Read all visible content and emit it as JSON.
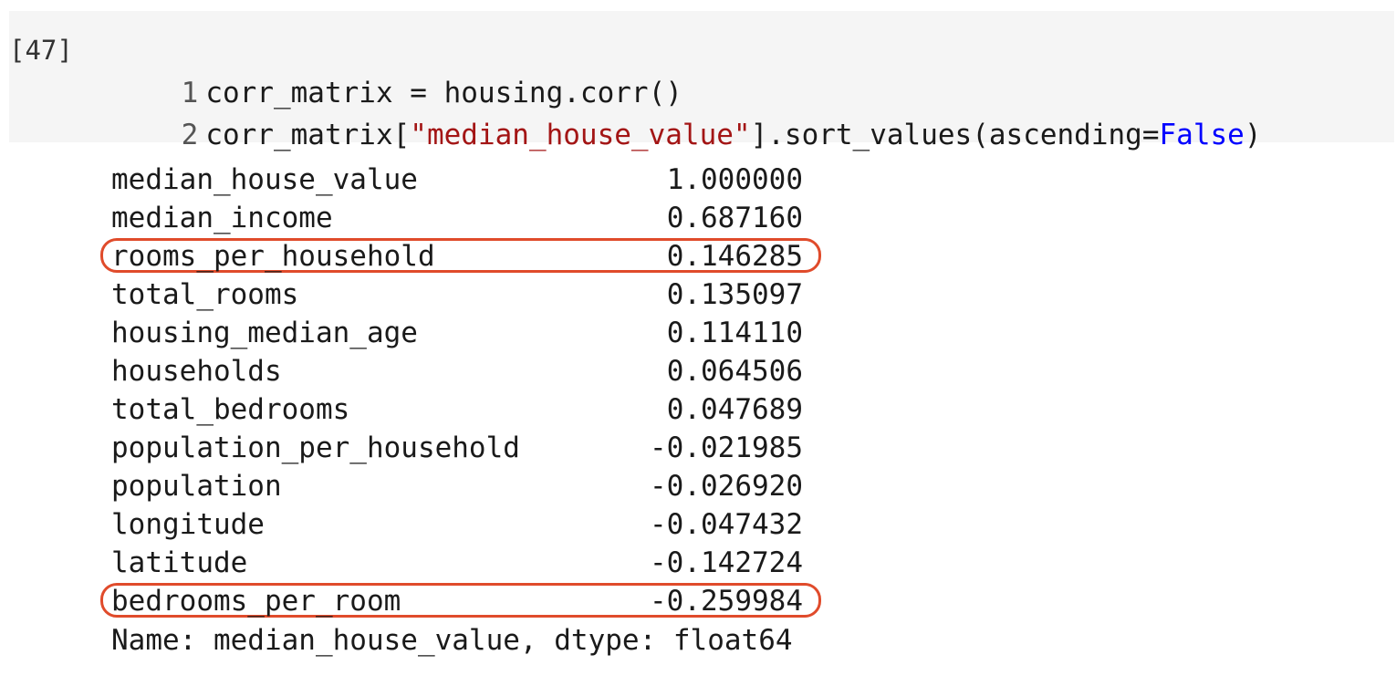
{
  "cell": {
    "execution_count": "[47]",
    "lines": [
      {
        "number": "1",
        "parts": [
          {
            "text": "corr_matrix = housing.corr()",
            "type": "plain"
          }
        ]
      },
      {
        "number": "2",
        "parts": [
          {
            "text": "corr_matrix[",
            "type": "plain"
          },
          {
            "text": "\"median_house_value\"",
            "type": "string"
          },
          {
            "text": "].sort_values(ascending=",
            "type": "plain"
          },
          {
            "text": "False",
            "type": "keyword"
          },
          {
            "text": ")",
            "type": "plain"
          }
        ]
      }
    ]
  },
  "output": {
    "rows": [
      {
        "name": "median_house_value",
        "value": "1.000000",
        "highlighted": false
      },
      {
        "name": "median_income",
        "value": "0.687160",
        "highlighted": false
      },
      {
        "name": "rooms_per_household",
        "value": "0.146285",
        "highlighted": true
      },
      {
        "name": "total_rooms",
        "value": "0.135097",
        "highlighted": false
      },
      {
        "name": "housing_median_age",
        "value": "0.114110",
        "highlighted": false
      },
      {
        "name": "households",
        "value": "0.064506",
        "highlighted": false
      },
      {
        "name": "total_bedrooms",
        "value": "0.047689",
        "highlighted": false
      },
      {
        "name": "population_per_household",
        "value": "-0.021985",
        "highlighted": false
      },
      {
        "name": "population",
        "value": "-0.026920",
        "highlighted": false
      },
      {
        "name": "longitude",
        "value": "-0.047432",
        "highlighted": false
      },
      {
        "name": "latitude",
        "value": "-0.142724",
        "highlighted": false
      },
      {
        "name": "bedrooms_per_room",
        "value": "-0.259984",
        "highlighted": true
      }
    ],
    "footer": "Name: median_house_value, dtype: float64"
  },
  "colors": {
    "cell_background": "#f5f5f5",
    "string": "#a31515",
    "keyword": "#0000ff",
    "highlight_border": "#e04b2b"
  }
}
